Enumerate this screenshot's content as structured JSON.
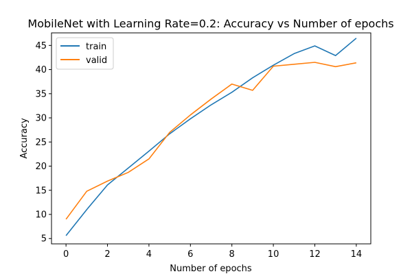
{
  "chart_data": {
    "type": "line",
    "title": "MobileNet with Learning Rate=0.2: Accuracy vs Number of epochs",
    "xlabel": "Number of epochs",
    "ylabel": "Accuracy",
    "xlim": [
      -0.7,
      14.7
    ],
    "ylim": [
      3.9,
      47.6
    ],
    "xticks": [
      0,
      2,
      4,
      6,
      8,
      10,
      12,
      14
    ],
    "yticks": [
      5,
      10,
      15,
      20,
      25,
      30,
      35,
      40,
      45
    ],
    "grid": false,
    "legend_position": "top-left",
    "x": [
      0,
      1,
      2,
      3,
      4,
      5,
      6,
      7,
      8,
      9,
      10,
      11,
      12,
      13,
      14
    ],
    "series": [
      {
        "name": "train",
        "color": "#1f77b4",
        "values": [
          5.6,
          11.0,
          16.1,
          19.6,
          23.1,
          26.7,
          29.8,
          32.7,
          35.3,
          38.3,
          40.9,
          43.3,
          44.9,
          42.9,
          46.5
        ]
      },
      {
        "name": "valid",
        "color": "#ff7f0e",
        "values": [
          9.0,
          14.8,
          16.9,
          18.7,
          21.5,
          27.0,
          30.6,
          33.9,
          37.0,
          35.7,
          40.7,
          41.1,
          41.5,
          40.6,
          41.4
        ]
      }
    ]
  }
}
